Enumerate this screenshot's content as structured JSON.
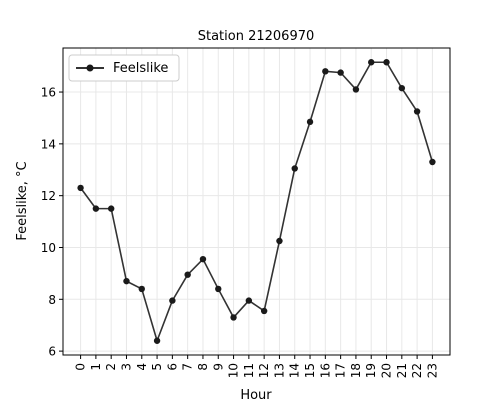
{
  "chart_data": {
    "type": "line",
    "title": "Station 21206970",
    "xlabel": "Hour",
    "ylabel": "Feelslike, °C",
    "x": [
      0,
      1,
      2,
      3,
      4,
      5,
      6,
      7,
      8,
      9,
      10,
      11,
      12,
      13,
      14,
      15,
      16,
      17,
      18,
      19,
      20,
      21,
      22,
      23
    ],
    "series": [
      {
        "name": "Feelslike",
        "values": [
          12.3,
          11.5,
          11.5,
          8.7,
          8.4,
          6.4,
          7.95,
          8.95,
          9.55,
          8.4,
          7.3,
          7.95,
          7.55,
          10.25,
          13.05,
          14.85,
          16.8,
          16.75,
          16.1,
          17.15,
          17.15,
          16.15,
          15.25,
          13.3
        ],
        "color": "#333333"
      }
    ],
    "xticks": [
      "0",
      "1",
      "2",
      "3",
      "4",
      "5",
      "6",
      "7",
      "8",
      "9",
      "10",
      "11",
      "12",
      "13",
      "14",
      "15",
      "16",
      "17",
      "18",
      "19",
      "20",
      "21",
      "22",
      "23"
    ],
    "yticks": [
      "6",
      "8",
      "10",
      "12",
      "14",
      "16"
    ],
    "xlim": [
      -1.15,
      24.15
    ],
    "ylim": [
      5.85,
      17.7
    ],
    "grid": true,
    "legend": "upper-left"
  }
}
